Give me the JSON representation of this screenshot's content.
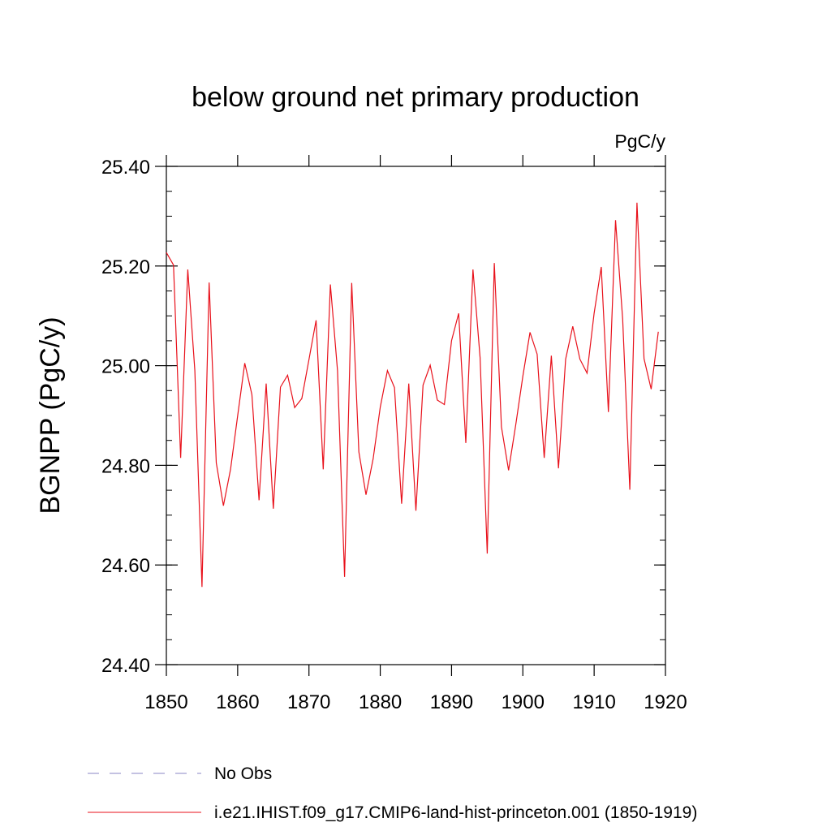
{
  "chart_data": {
    "type": "line",
    "title": "below ground net primary production",
    "units_label": "PgC/y",
    "xlabel": "",
    "ylabel": "BGNPP  (PgC/y)",
    "xlim": [
      1850,
      1920
    ],
    "ylim": [
      24.4,
      25.4
    ],
    "x_ticks": [
      1850,
      1860,
      1870,
      1880,
      1890,
      1900,
      1910,
      1920
    ],
    "x_tick_labels": [
      "1850",
      "1860",
      "1870",
      "1880",
      "1890",
      "1900",
      "1910",
      "1920"
    ],
    "y_ticks": [
      24.4,
      24.6,
      24.8,
      25.0,
      25.2,
      25.4
    ],
    "y_tick_labels": [
      "24.40",
      "24.60",
      "24.80",
      "25.00",
      "25.20",
      "25.40"
    ],
    "grid": false,
    "legend_position": "bottom",
    "legend": [
      {
        "label": "No Obs",
        "color": "#8a86c6",
        "style": "dashed"
      },
      {
        "label": "i.e21.IHIST.f09_g17.CMIP6-land-hist-princeton.001 (1850-1919)",
        "color": "#e8111b",
        "style": "solid"
      }
    ],
    "series": [
      {
        "name": "i.e21.IHIST.f09_g17.CMIP6-land-hist-princeton.001 (1850-1919)",
        "color": "#e8111b",
        "x": [
          1850,
          1851,
          1852,
          1853,
          1854,
          1855,
          1856,
          1857,
          1858,
          1859,
          1860,
          1861,
          1862,
          1863,
          1864,
          1865,
          1866,
          1867,
          1868,
          1869,
          1870,
          1871,
          1872,
          1873,
          1874,
          1875,
          1876,
          1877,
          1878,
          1879,
          1880,
          1881,
          1882,
          1883,
          1884,
          1885,
          1886,
          1887,
          1888,
          1889,
          1890,
          1891,
          1892,
          1893,
          1894,
          1895,
          1896,
          1897,
          1898,
          1899,
          1900,
          1901,
          1902,
          1903,
          1904,
          1905,
          1906,
          1907,
          1908,
          1909,
          1910,
          1911,
          1912,
          1913,
          1914,
          1915,
          1916,
          1917,
          1918,
          1919
        ],
        "values": [
          25.227,
          25.202,
          24.815,
          25.193,
          24.99,
          24.556,
          25.167,
          24.805,
          24.719,
          24.792,
          24.9,
          25.005,
          24.942,
          24.73,
          24.964,
          24.713,
          24.957,
          24.981,
          24.916,
          24.934,
          25.012,
          25.091,
          24.792,
          25.163,
          24.99,
          24.576,
          25.166,
          24.827,
          24.741,
          24.813,
          24.917,
          24.99,
          24.956,
          24.723,
          24.964,
          24.709,
          24.961,
          25.001,
          24.931,
          24.922,
          25.05,
          25.105,
          24.845,
          25.193,
          25.016,
          24.623,
          25.206,
          24.877,
          24.79,
          24.881,
          24.979,
          25.067,
          25.023,
          24.815,
          25.02,
          24.794,
          25.013,
          25.079,
          25.013,
          24.985,
          25.105,
          25.198,
          24.907,
          25.292,
          25.093,
          24.751,
          25.327,
          25.014,
          24.953,
          25.068
        ]
      }
    ]
  }
}
